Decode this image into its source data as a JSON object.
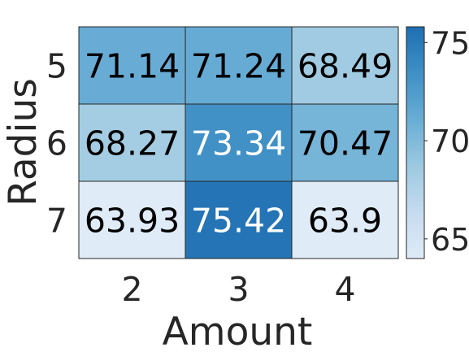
{
  "chart_data": {
    "type": "heatmap",
    "xlabel": "Amount",
    "ylabel": "Radius",
    "x_categories": [
      "2",
      "3",
      "4"
    ],
    "y_categories": [
      "5",
      "6",
      "7"
    ],
    "values": [
      [
        71.14,
        71.24,
        68.49
      ],
      [
        68.27,
        73.34,
        70.47
      ],
      [
        63.93,
        75.42,
        63.9
      ]
    ],
    "value_labels": [
      [
        "71.14",
        "71.24",
        "68.49"
      ],
      [
        "68.27",
        "73.34",
        "70.47"
      ],
      [
        "63.93",
        "75.42",
        "63.9"
      ]
    ],
    "colormap": "Blues",
    "vmin": 63.9,
    "vmax": 75.42,
    "colorbar_ticks": [
      65,
      70,
      75
    ],
    "colorbar_tick_labels": [
      "65",
      "70",
      "75"
    ],
    "text_color_dark": "#000000",
    "text_color_light": "#ffffff",
    "grid_line_color": "#262626"
  }
}
